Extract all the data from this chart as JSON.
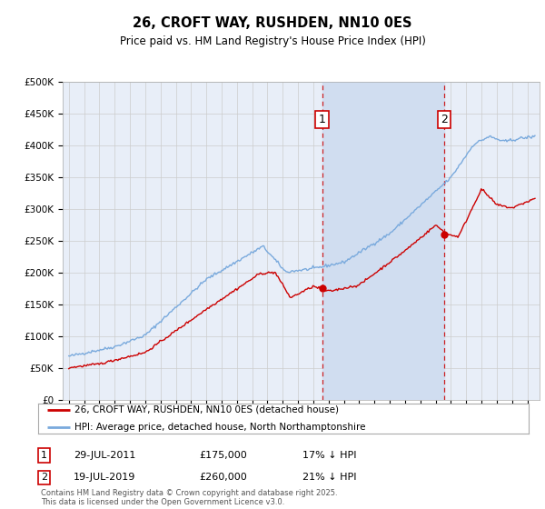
{
  "title": "26, CROFT WAY, RUSHDEN, NN10 0ES",
  "subtitle": "Price paid vs. HM Land Registry's House Price Index (HPI)",
  "ylim": [
    0,
    500000
  ],
  "yticks": [
    0,
    50000,
    100000,
    150000,
    200000,
    250000,
    300000,
    350000,
    400000,
    450000,
    500000
  ],
  "ytick_labels": [
    "£0",
    "£50K",
    "£100K",
    "£150K",
    "£200K",
    "£250K",
    "£300K",
    "£350K",
    "£400K",
    "£450K",
    "£500K"
  ],
  "xlim_left": 1994.6,
  "xlim_right": 2025.8,
  "plot_bg_color": "#e8eef8",
  "shade_color": "#d0ddf0",
  "grid_color": "#cccccc",
  "hpi_color": "#7aaadd",
  "price_color": "#cc0000",
  "legend_entries": [
    "26, CROFT WAY, RUSHDEN, NN10 0ES (detached house)",
    "HPI: Average price, detached house, North Northamptonshire"
  ],
  "transaction1_date": "29-JUL-2011",
  "transaction1_price": "£175,000",
  "transaction1_hpi": "17% ↓ HPI",
  "transaction1_x": 2011.57,
  "transaction1_y": 175000,
  "transaction2_date": "19-JUL-2019",
  "transaction2_price": "£260,000",
  "transaction2_hpi": "21% ↓ HPI",
  "transaction2_x": 2019.55,
  "transaction2_y": 260000,
  "footnote": "Contains HM Land Registry data © Crown copyright and database right 2025.\nThis data is licensed under the Open Government Licence v3.0."
}
